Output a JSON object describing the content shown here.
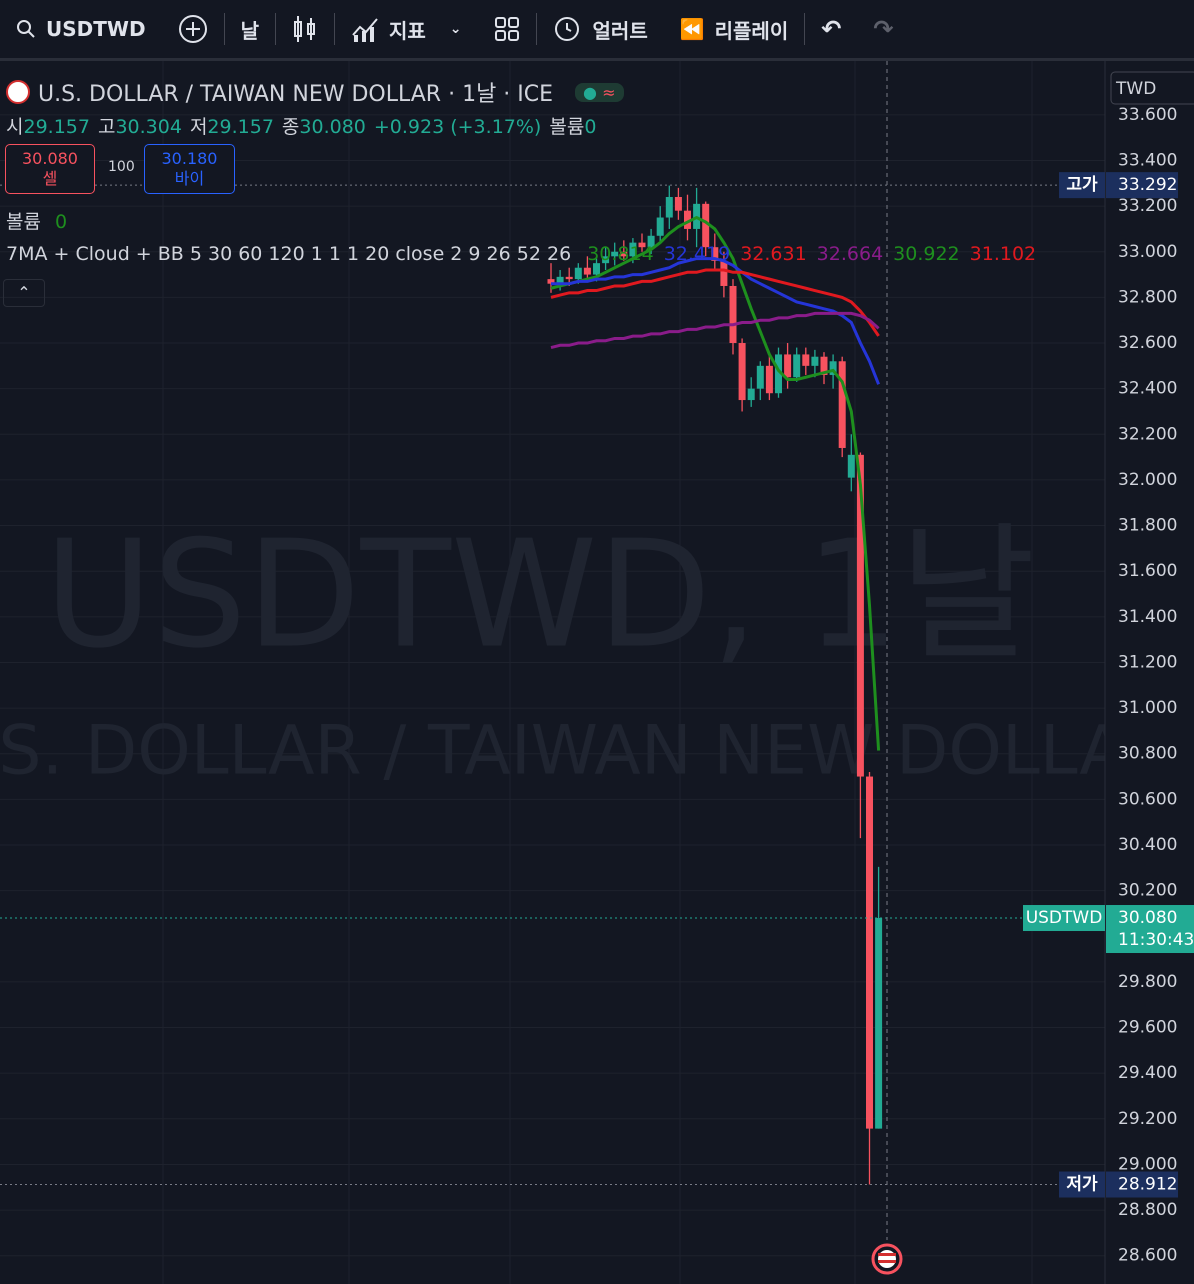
{
  "toolbar": {
    "symbol": "USDTWD",
    "interval": "날",
    "indicators": "지표",
    "alert": "얼러트",
    "replay": "리플레이"
  },
  "legend": {
    "title": "U.S. DOLLAR / TAIWAN NEW DOLLAR · 1날 · ICE",
    "ohlc": [
      {
        "label": "시",
        "value": "29.157"
      },
      {
        "label": "고",
        "value": "30.304"
      },
      {
        "label": "저",
        "value": "29.157"
      },
      {
        "label": "종",
        "value": "30.080"
      }
    ],
    "change": "+0.923 (+3.17%)",
    "volume_label": "볼륨",
    "volume": "0"
  },
  "trade": {
    "sell_price": "30.080",
    "sell": "셀",
    "quantity": "100",
    "buy_price": "30.180",
    "buy": "바이"
  },
  "volume_indicator": {
    "label": "볼륨",
    "value": "0"
  },
  "indicator": {
    "name": "7MA + Cloud + BB 5 30 60 120 1 1 1 20 close 2 9 26 52 26",
    "values": [
      {
        "text": "30.814",
        "color": "#1e8f1e"
      },
      {
        "text": "32.419",
        "color": "#2535d8"
      },
      {
        "text": "32.631",
        "color": "#e0191f"
      },
      {
        "text": "32.664",
        "color": "#8a1c8a"
      },
      {
        "text": "30.922",
        "color": "#1e8f1e"
      },
      {
        "text": "31.102",
        "color": "#e0191f"
      }
    ]
  },
  "watermark": {
    "line1": "USDTWD, 1날",
    "line2": "U.S. DOLLAR / TAIWAN NEW DOLLAR"
  },
  "currency": "TWD",
  "chart_data": {
    "type": "candlestick",
    "ylim": [
      28.476,
      33.836
    ],
    "yticks": [
      {
        "value": 33.6,
        "label": "33.600"
      },
      {
        "value": 33.4,
        "label": "33.400"
      },
      {
        "value": 33.2,
        "label": "33.200"
      },
      {
        "value": 33,
        "label": "33.000"
      },
      {
        "value": 32.8,
        "label": "32.800"
      },
      {
        "value": 32.6,
        "label": "32.600"
      },
      {
        "value": 32.4,
        "label": "32.400"
      },
      {
        "value": 32.2,
        "label": "32.200"
      },
      {
        "value": 32,
        "label": "32.000"
      },
      {
        "value": 31.8,
        "label": "31.800"
      },
      {
        "value": 31.6,
        "label": "31.600"
      },
      {
        "value": 31.4,
        "label": "31.400"
      },
      {
        "value": 31.2,
        "label": "31.200"
      },
      {
        "value": 31,
        "label": "31.000"
      },
      {
        "value": 30.8,
        "label": "30.800"
      },
      {
        "value": 30.6,
        "label": "30.600"
      },
      {
        "value": 30.4,
        "label": "30.400"
      },
      {
        "value": 30.2,
        "label": "30.200"
      },
      {
        "value": 29.8,
        "label": "29.800"
      },
      {
        "value": 29.6,
        "label": "29.600"
      },
      {
        "value": 29.4,
        "label": "29.400"
      },
      {
        "value": 29.2,
        "label": "29.200"
      },
      {
        "value": 29,
        "label": "29.000"
      },
      {
        "value": 28.8,
        "label": "28.800"
      },
      {
        "value": 28.6,
        "label": "28.600"
      }
    ],
    "up_color": "#22ab94",
    "down_color": "#f7525f",
    "candles": {
      "open": [
        32.88,
        32.86,
        32.89,
        32.88,
        32.93,
        32.9,
        32.95,
        32.98,
        33.0,
        32.98,
        33.04,
        33.02,
        33.07,
        33.15,
        33.24,
        33.18,
        33.1,
        33.21,
        33.02,
        32.96,
        32.85,
        32.6,
        32.35,
        32.4,
        32.5,
        32.38,
        32.55,
        32.45,
        32.55,
        32.5,
        32.54,
        32.46,
        32.52,
        32.01,
        32.11,
        30.7,
        29.157
      ],
      "high": [
        32.95,
        32.92,
        32.93,
        32.95,
        32.98,
        32.97,
        33.02,
        33.04,
        33.05,
        33.06,
        33.08,
        33.1,
        33.2,
        33.29,
        33.28,
        33.25,
        33.28,
        33.22,
        33.08,
        33.0,
        32.88,
        32.62,
        32.45,
        32.52,
        32.55,
        32.58,
        32.6,
        32.58,
        32.58,
        32.57,
        32.56,
        32.55,
        32.54,
        32.2,
        32.12,
        30.72,
        30.304
      ],
      "low": [
        32.82,
        32.83,
        32.85,
        32.86,
        32.88,
        32.87,
        32.92,
        32.94,
        32.96,
        32.95,
        33.0,
        32.99,
        33.04,
        33.1,
        33.14,
        33.05,
        33.02,
        32.98,
        32.92,
        32.8,
        32.55,
        32.3,
        32.32,
        32.35,
        32.35,
        32.36,
        32.4,
        32.43,
        32.46,
        32.45,
        32.42,
        32.4,
        32.1,
        31.95,
        30.43,
        28.912,
        29.157
      ],
      "close": [
        32.86,
        32.89,
        32.88,
        32.93,
        32.9,
        32.95,
        32.98,
        33.0,
        32.98,
        33.04,
        33.02,
        33.07,
        33.15,
        33.24,
        33.18,
        33.1,
        33.21,
        33.02,
        32.96,
        32.85,
        32.6,
        32.35,
        32.4,
        32.5,
        32.38,
        32.55,
        32.45,
        32.55,
        32.5,
        32.54,
        32.46,
        32.52,
        32.14,
        32.11,
        30.7,
        29.157,
        30.08
      ]
    },
    "series": [
      {
        "color": "#1e8f1e",
        "values": [
          32.84,
          32.85,
          32.86,
          32.87,
          32.88,
          32.89,
          32.91,
          32.93,
          32.95,
          32.97,
          32.99,
          33.01,
          33.04,
          33.08,
          33.11,
          33.13,
          33.15,
          33.13,
          33.1,
          33.04,
          32.97,
          32.86,
          32.75,
          32.65,
          32.55,
          32.48,
          32.44,
          32.44,
          32.45,
          32.46,
          32.47,
          32.48,
          32.43,
          32.3,
          31.98,
          31.45,
          30.814
        ]
      },
      {
        "color": "#2535d8",
        "values": [
          32.86,
          32.86,
          32.86,
          32.87,
          32.87,
          32.88,
          32.88,
          32.89,
          32.89,
          32.9,
          32.9,
          32.91,
          32.92,
          32.93,
          32.95,
          32.96,
          32.97,
          32.97,
          32.97,
          32.96,
          32.94,
          32.91,
          32.88,
          32.86,
          32.84,
          32.82,
          32.8,
          32.78,
          32.77,
          32.76,
          32.75,
          32.74,
          32.72,
          32.69,
          32.6,
          32.52,
          32.419
        ]
      },
      {
        "color": "#e0191f",
        "values": [
          32.8,
          32.81,
          32.82,
          32.82,
          32.83,
          32.83,
          32.84,
          32.85,
          32.85,
          32.86,
          32.87,
          32.87,
          32.88,
          32.89,
          32.9,
          32.91,
          32.91,
          32.92,
          32.92,
          32.92,
          32.91,
          32.91,
          32.9,
          32.89,
          32.88,
          32.87,
          32.86,
          32.85,
          32.84,
          32.83,
          32.82,
          32.81,
          32.8,
          32.78,
          32.74,
          32.69,
          32.631
        ]
      },
      {
        "color": "#8a1c8a",
        "values": [
          32.58,
          32.59,
          32.59,
          32.6,
          32.6,
          32.61,
          32.61,
          32.62,
          32.62,
          32.63,
          32.63,
          32.64,
          32.64,
          32.65,
          32.65,
          32.66,
          32.66,
          32.67,
          32.67,
          32.68,
          32.68,
          32.69,
          32.69,
          32.7,
          32.7,
          32.71,
          32.71,
          32.72,
          32.72,
          32.73,
          32.73,
          32.73,
          32.73,
          32.73,
          32.72,
          32.7,
          32.664
        ]
      }
    ],
    "price_lines": [
      {
        "label": "고가",
        "value": 33.292,
        "value_label": "33.292"
      },
      {
        "label": "저가",
        "value": 28.912,
        "value_label": "28.912"
      },
      {
        "label": "USDTWD",
        "value": 30.08,
        "value_label": "30.080",
        "time": "11:30:43"
      }
    ]
  }
}
